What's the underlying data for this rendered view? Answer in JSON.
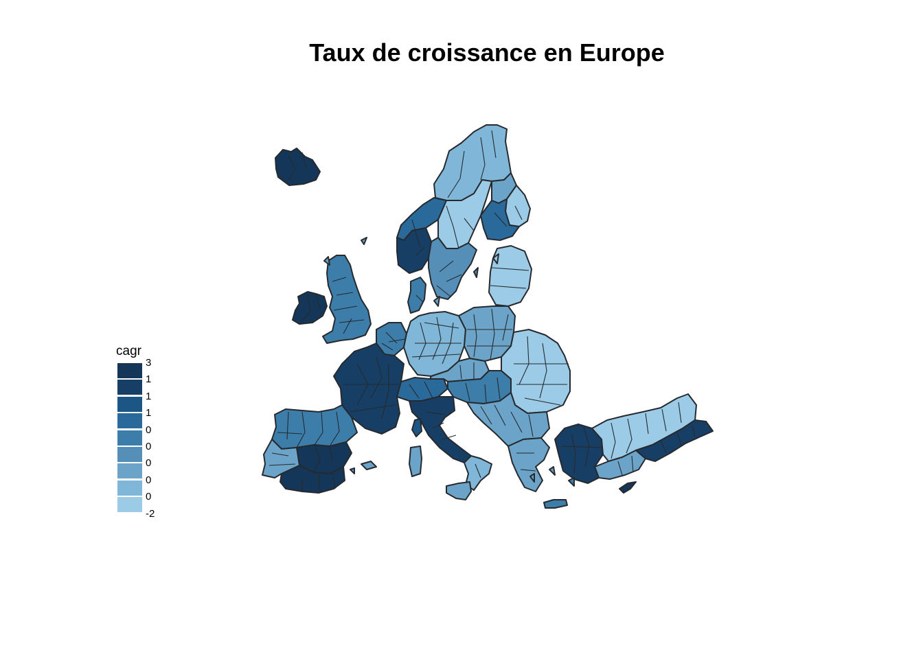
{
  "title": "Taux de croissance en Europe",
  "legend": {
    "title": "cagr",
    "labels": [
      "3",
      "1",
      "1",
      "1",
      "0",
      "0",
      "0",
      "0",
      "0",
      "-2"
    ],
    "colors": [
      "#143658",
      "#173f66",
      "#1c5684",
      "#2a6a9a",
      "#3c7daa",
      "#558fb8",
      "#6ba4c8",
      "#80b6d8",
      "#9bcbe6"
    ]
  },
  "map": {
    "regions": [
      {
        "name": "Iceland",
        "color": "#143658"
      },
      {
        "name": "Ireland",
        "color": "#143658"
      },
      {
        "name": "Great Britain",
        "color": "#3c7daa"
      },
      {
        "name": "Northern Scandinavia",
        "color": "#80b6d8"
      },
      {
        "name": "Western Norway",
        "color": "#2a6a9a"
      },
      {
        "name": "Southern Norway",
        "color": "#173f66"
      },
      {
        "name": "Northern Sweden",
        "color": "#9bcbe6"
      },
      {
        "name": "Southern Sweden",
        "color": "#558fb8"
      },
      {
        "name": "Northern Finland",
        "color": "#6ba4c8"
      },
      {
        "name": "Eastern Finland",
        "color": "#9bcbe6"
      },
      {
        "name": "Southern Finland",
        "color": "#2a6a9a"
      },
      {
        "name": "Baltic States",
        "color": "#9bcbe6"
      },
      {
        "name": "Denmark",
        "color": "#3c7daa"
      },
      {
        "name": "Benelux",
        "color": "#3c7daa"
      },
      {
        "name": "Germany",
        "color": "#80b6d8"
      },
      {
        "name": "Poland",
        "color": "#6ba4c8"
      },
      {
        "name": "France",
        "color": "#173f66"
      },
      {
        "name": "Alps",
        "color": "#2a6a9a"
      },
      {
        "name": "Czechia",
        "color": "#6ba4c8"
      },
      {
        "name": "Austria Hungary",
        "color": "#3c7daa"
      },
      {
        "name": "Romania",
        "color": "#9bcbe6"
      },
      {
        "name": "Balkans",
        "color": "#6ba4c8"
      },
      {
        "name": "Italy",
        "color": "#173f66"
      },
      {
        "name": "Southern Italy",
        "color": "#80b6d8"
      },
      {
        "name": "Sicily",
        "color": "#6ba4c8"
      },
      {
        "name": "Sardinia",
        "color": "#6ba4c8"
      },
      {
        "name": "Corsica",
        "color": "#1c5684"
      },
      {
        "name": "Iberia",
        "color": "#3c7daa"
      },
      {
        "name": "Central Spain",
        "color": "#143658"
      },
      {
        "name": "Southern Spain",
        "color": "#143658"
      },
      {
        "name": "Portugal",
        "color": "#6ba4c8"
      },
      {
        "name": "Greece",
        "color": "#6ba4c8"
      },
      {
        "name": "Crete",
        "color": "#3c7daa"
      },
      {
        "name": "Western Turkey",
        "color": "#173f66"
      },
      {
        "name": "Central Turkey",
        "color": "#9bcbe6"
      },
      {
        "name": "Eastern Turkey",
        "color": "#6ba4c8"
      },
      {
        "name": "Southeast Turkey",
        "color": "#173f66"
      },
      {
        "name": "Cyprus",
        "color": "#143658"
      }
    ]
  }
}
